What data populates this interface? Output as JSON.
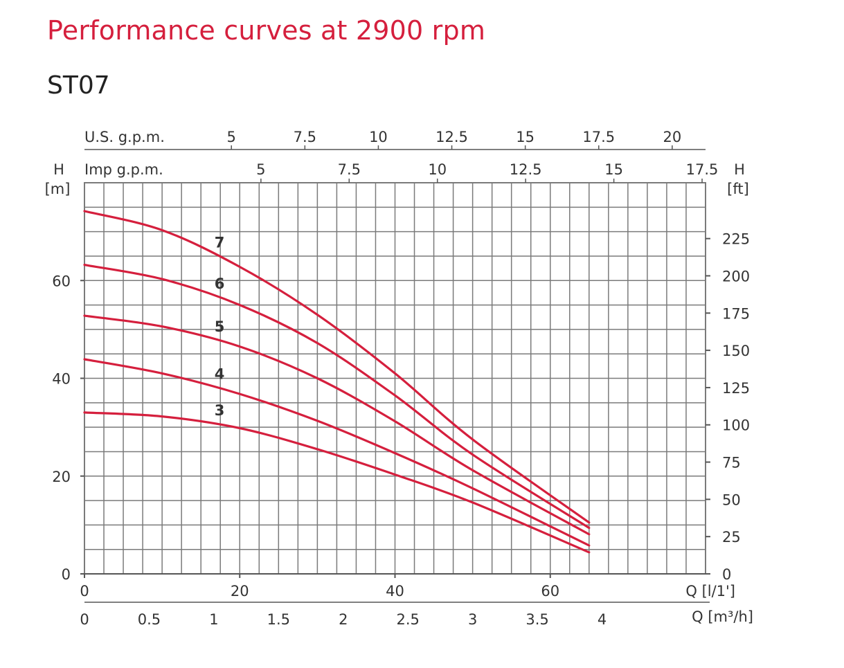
{
  "title": "Performance curves at 2900 rpm",
  "subtitle": "ST07",
  "colors": {
    "curve": "#d51f3d",
    "grid": "#7a7a7a",
    "title": "#d51f3d"
  },
  "chart_data": {
    "type": "line",
    "x_axis_primary": {
      "label": "Q [l/1']",
      "range": [
        0,
        80
      ],
      "ticks": [
        "0",
        "20",
        "40",
        "60"
      ],
      "tick_values": [
        0,
        20,
        40,
        60
      ]
    },
    "x_axis_m3h": {
      "label": "Q [m³/h]",
      "range": [
        0,
        4.8
      ],
      "ticks": [
        "0",
        "0.5",
        "1",
        "1.5",
        "2",
        "2.5",
        "3",
        "3.5",
        "4"
      ],
      "tick_values": [
        0,
        0.5,
        1,
        1.5,
        2,
        2.5,
        3,
        3.5,
        4
      ]
    },
    "x_axis_usgpm": {
      "label": "U.S. g.p.m.",
      "ticks": [
        "5",
        "7.5",
        "10",
        "12.5",
        "15",
        "17.5",
        "20"
      ],
      "tick_values": [
        5,
        7.5,
        10,
        12.5,
        15,
        17.5,
        20
      ]
    },
    "x_axis_impgpm": {
      "label": "Imp g.p.m.",
      "ticks": [
        "5",
        "7.5",
        "10",
        "12.5",
        "15",
        "17.5"
      ],
      "tick_values": [
        5,
        7.5,
        10,
        12.5,
        15,
        17.5
      ]
    },
    "y_axis_left": {
      "label_top": "H",
      "label_unit": "[m]",
      "range": [
        0,
        80
      ],
      "ticks": [
        "0",
        "20",
        "40",
        "60"
      ],
      "tick_values": [
        0,
        20,
        40,
        60
      ]
    },
    "y_axis_right": {
      "label_top": "H",
      "label_unit": "[ft]",
      "ticks": [
        "0",
        "25",
        "50",
        "75",
        "100",
        "125",
        "150",
        "175",
        "200",
        "225"
      ],
      "tick_values": [
        0,
        25,
        50,
        75,
        100,
        125,
        150,
        175,
        200,
        225
      ]
    },
    "label_q": 17.4,
    "series": [
      {
        "name": "7",
        "x": [
          0,
          10,
          20,
          30,
          40,
          50,
          65
        ],
        "y": [
          74.2,
          70.3,
          62.8,
          53.0,
          41.0,
          27.5,
          10.5
        ]
      },
      {
        "name": "6",
        "x": [
          0,
          10,
          20,
          30,
          40,
          50,
          65
        ],
        "y": [
          63.2,
          60.3,
          55.0,
          47.2,
          36.5,
          24.4,
          9.4
        ]
      },
      {
        "name": "5",
        "x": [
          0,
          10,
          20,
          30,
          40,
          50,
          65
        ],
        "y": [
          52.8,
          50.6,
          46.5,
          40.0,
          31.2,
          21.2,
          8.1
        ]
      },
      {
        "name": "4",
        "x": [
          0,
          10,
          20,
          30,
          40,
          50,
          65
        ],
        "y": [
          43.9,
          41.0,
          36.8,
          31.3,
          24.7,
          17.5,
          5.8
        ]
      },
      {
        "name": "3",
        "x": [
          0,
          10,
          20,
          30,
          40,
          50,
          65
        ],
        "y": [
          33.0,
          32.2,
          29.8,
          25.5,
          20.3,
          14.6,
          4.4
        ]
      }
    ]
  }
}
